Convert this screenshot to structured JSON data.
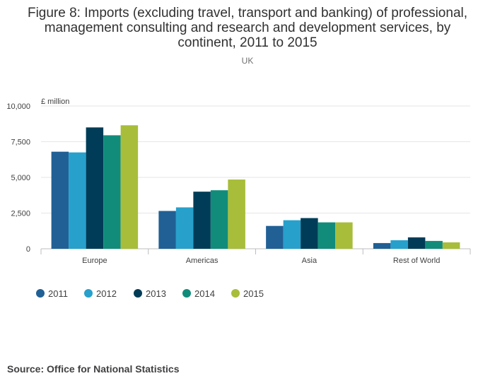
{
  "header": {
    "title": "Figure 8: Imports (excluding travel, transport and banking) of professional, management consulting and research and development services, by continent, 2011 to 2015",
    "subtitle": "UK"
  },
  "footer": {
    "source": "Source: Office for National Statistics"
  },
  "chart_data": {
    "type": "bar",
    "title": "Figure 8: Imports (excluding travel, transport and banking) of professional, management consulting and research and development services, by continent, 2011 to 2015",
    "subtitle": "UK",
    "ylabel": "£ million",
    "xlabel": "",
    "ylim": [
      0,
      10000
    ],
    "yticks": [
      0,
      2500,
      5000,
      7500,
      10000
    ],
    "ytick_labels": [
      "0",
      "2,500",
      "5,000",
      "7,500",
      "10,000"
    ],
    "grid": true,
    "legend": "bottom-left",
    "categories": [
      "Europe",
      "Americas",
      "Asia",
      "Rest of World"
    ],
    "series": [
      {
        "name": "2011",
        "color": "#206095",
        "values": [
          6800,
          2650,
          1600,
          400
        ]
      },
      {
        "name": "2012",
        "color": "#27a0cc",
        "values": [
          6750,
          2900,
          2000,
          600
        ]
      },
      {
        "name": "2013",
        "color": "#003c57",
        "values": [
          8500,
          4000,
          2150,
          800
        ]
      },
      {
        "name": "2014",
        "color": "#118c7b",
        "values": [
          7950,
          4100,
          1850,
          550
        ]
      },
      {
        "name": "2015",
        "color": "#a8bd3a",
        "values": [
          8650,
          4850,
          1850,
          450
        ]
      }
    ]
  }
}
